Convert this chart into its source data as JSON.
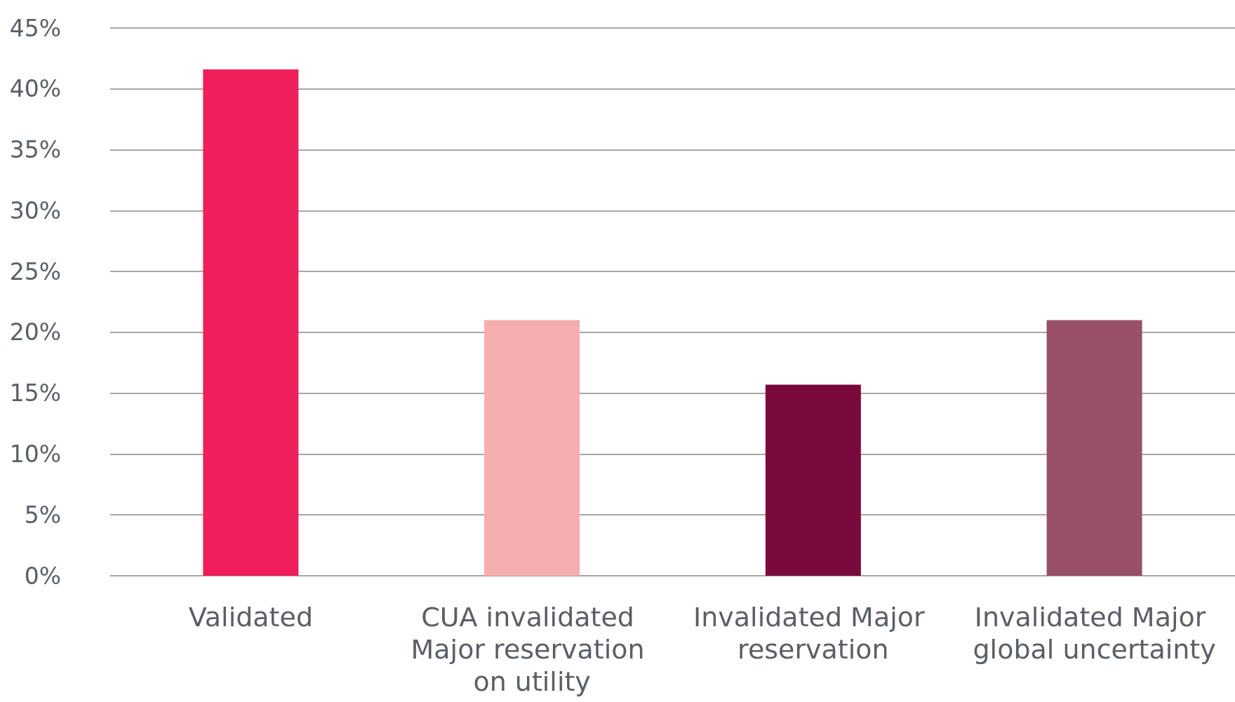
{
  "chart_data": {
    "type": "bar",
    "categories": [
      "Validated",
      "CUA invalidated Major reservation on utility",
      "Invalidated Major reservation",
      "Invalidated Major global uncertainty"
    ],
    "values": [
      41.6,
      21,
      15.7,
      21
    ],
    "colors": [
      "#ee1f5a",
      "#f6adb0",
      "#7b0a3c",
      "#9a4f68"
    ],
    "ylim": [
      0,
      45
    ],
    "yticks": [
      {
        "value": 0,
        "label": "0%"
      },
      {
        "value": 5,
        "label": "5%"
      },
      {
        "value": 10,
        "label": "10%"
      },
      {
        "value": 15,
        "label": "15%"
      },
      {
        "value": 20,
        "label": "20%"
      },
      {
        "value": 25,
        "label": "25%"
      },
      {
        "value": 30,
        "label": "30%"
      },
      {
        "value": 35,
        "label": "35%"
      },
      {
        "value": 40,
        "label": "40%"
      },
      {
        "value": 45,
        "label": "45%"
      }
    ],
    "grid": "y"
  }
}
